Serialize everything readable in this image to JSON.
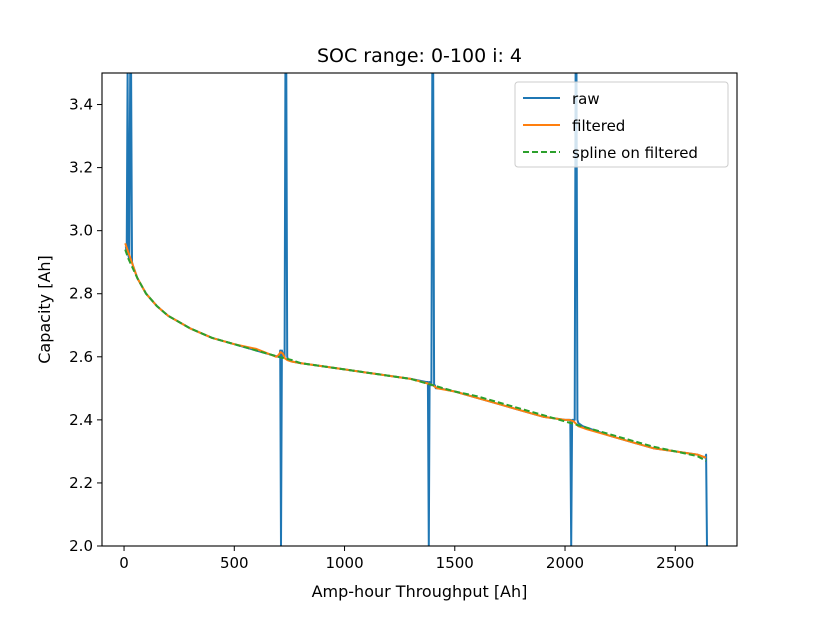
{
  "chart_data": {
    "type": "line",
    "title": "SOC range: 0-100 i: 4",
    "xlabel": "Amp-hour Throughput [Ah]",
    "ylabel": "Capacity [Ah]",
    "xlim": [
      -100,
      2780
    ],
    "ylim": [
      2.0,
      3.5
    ],
    "xticks": [
      0,
      500,
      1000,
      1500,
      2000,
      2500
    ],
    "xtick_labels": [
      "0",
      "500",
      "1000",
      "1500",
      "2000",
      "2500"
    ],
    "yticks": [
      2.0,
      2.2,
      2.4,
      2.6,
      2.8,
      3.0,
      3.2,
      3.4
    ],
    "ytick_labels": [
      "2.0",
      "2.2",
      "2.4",
      "2.6",
      "2.8",
      "3.0",
      "3.2",
      "3.4"
    ],
    "grid": false,
    "legend_position": "upper right",
    "series": [
      {
        "name": "raw",
        "color": "#1f77b4",
        "style": "solid",
        "x": [
          8,
          12,
          16,
          20,
          24,
          28,
          32,
          36,
          40,
          60,
          100,
          150,
          200,
          300,
          400,
          500,
          600,
          700,
          705,
          708,
          712,
          716,
          720,
          724,
          728,
          732,
          736,
          740,
          744,
          760,
          800,
          900,
          1000,
          1100,
          1200,
          1300,
          1370,
          1375,
          1378,
          1382,
          1386,
          1390,
          1394,
          1398,
          1402,
          1406,
          1410,
          1414,
          1430,
          1500,
          1600,
          1700,
          1800,
          1900,
          2000,
          2020,
          2024,
          2028,
          2032,
          2036,
          2040,
          2044,
          2048,
          2052,
          2056,
          2060,
          2080,
          2200,
          2300,
          2400,
          2500,
          2600,
          2636,
          2640,
          2644,
          2648
        ],
        "y": [
          2.95,
          2.93,
          3.5,
          2.92,
          2.91,
          3.5,
          3.5,
          2.9,
          2.89,
          2.85,
          2.8,
          2.76,
          2.73,
          2.69,
          2.66,
          2.64,
          2.62,
          2.6,
          2.6,
          2.62,
          2.0,
          2.62,
          2.61,
          2.6,
          2.6,
          3.5,
          3.5,
          2.6,
          2.59,
          2.585,
          2.58,
          2.57,
          2.56,
          2.55,
          2.54,
          2.53,
          2.52,
          2.52,
          2.52,
          2.0,
          2.52,
          2.51,
          2.51,
          3.5,
          3.5,
          2.51,
          2.51,
          2.5,
          2.5,
          2.49,
          2.47,
          2.45,
          2.43,
          2.41,
          2.4,
          2.4,
          2.4,
          2.0,
          2.4,
          2.4,
          2.4,
          2.4,
          3.5,
          3.5,
          2.4,
          2.39,
          2.38,
          2.35,
          2.33,
          2.31,
          2.3,
          2.29,
          2.28,
          2.29,
          2.0,
          2.0
        ]
      },
      {
        "name": "filtered",
        "color": "#ff7f0e",
        "style": "solid",
        "x": [
          5,
          20,
          40,
          60,
          100,
          150,
          200,
          300,
          400,
          500,
          600,
          690,
          700,
          710,
          720,
          730,
          740,
          760,
          800,
          900,
          1000,
          1100,
          1200,
          1300,
          1380,
          1400,
          1420,
          1500,
          1600,
          1700,
          1800,
          1900,
          2000,
          2020,
          2040,
          2060,
          2100,
          2200,
          2300,
          2400,
          2500,
          2600,
          2640
        ],
        "y": [
          2.96,
          2.93,
          2.89,
          2.85,
          2.8,
          2.76,
          2.73,
          2.69,
          2.66,
          2.64,
          2.625,
          2.6,
          2.605,
          2.615,
          2.61,
          2.595,
          2.59,
          2.585,
          2.58,
          2.57,
          2.56,
          2.55,
          2.54,
          2.53,
          2.515,
          2.51,
          2.5,
          2.49,
          2.47,
          2.45,
          2.43,
          2.41,
          2.4,
          2.4,
          2.395,
          2.38,
          2.37,
          2.35,
          2.33,
          2.31,
          2.3,
          2.29,
          2.28
        ]
      },
      {
        "name": "spline on filtered",
        "color": "#2ca02c",
        "style": "dashed",
        "x": [
          5,
          20,
          40,
          60,
          100,
          150,
          200,
          300,
          400,
          500,
          600,
          700,
          760,
          800,
          900,
          1000,
          1100,
          1200,
          1300,
          1400,
          1500,
          1600,
          1700,
          1800,
          1900,
          2000,
          2100,
          2200,
          2300,
          2400,
          2500,
          2600,
          2640
        ],
        "y": [
          2.94,
          2.91,
          2.88,
          2.85,
          2.8,
          2.76,
          2.73,
          2.69,
          2.66,
          2.64,
          2.62,
          2.6,
          2.59,
          2.58,
          2.57,
          2.56,
          2.55,
          2.54,
          2.53,
          2.51,
          2.49,
          2.475,
          2.455,
          2.435,
          2.415,
          2.395,
          2.375,
          2.355,
          2.335,
          2.315,
          2.3,
          2.285,
          2.27
        ]
      }
    ]
  }
}
